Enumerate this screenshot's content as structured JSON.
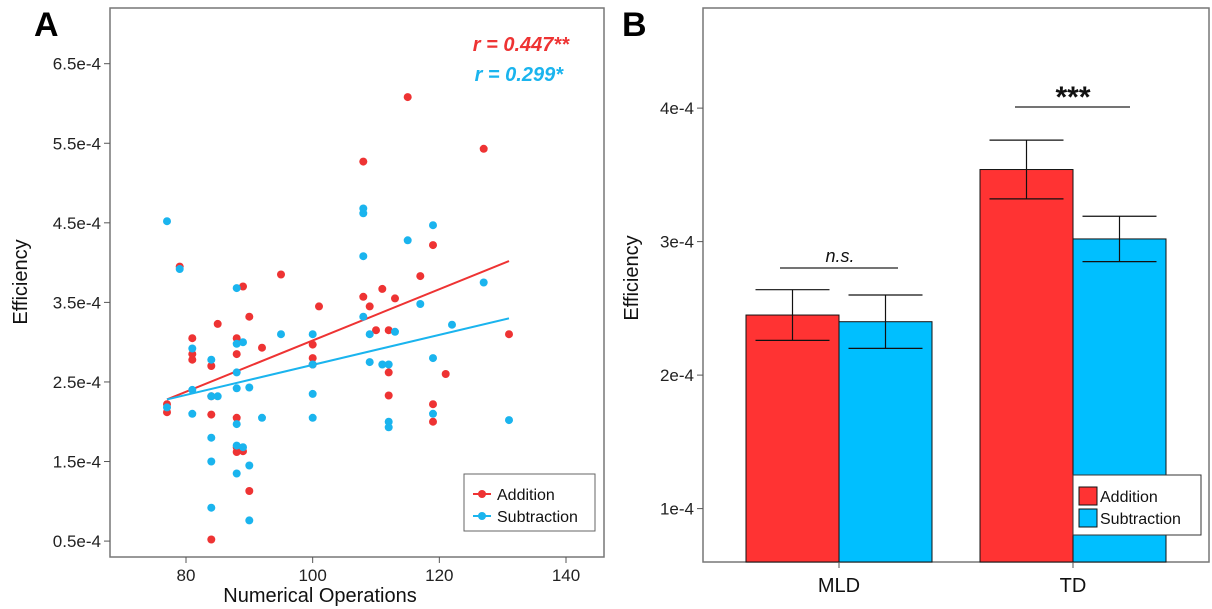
{
  "chart_data": [
    {
      "panel": "A",
      "type": "scatter",
      "xlabel": "Numerical Operations",
      "ylabel": "Efficiency",
      "xlim": [
        68,
        146
      ],
      "ylim": [
        3e-05,
        0.00072
      ],
      "x_ticks": [
        80,
        100,
        120,
        140
      ],
      "y_ticks": [
        5e-05,
        0.00015,
        0.00025,
        0.00035,
        0.00045,
        0.00055,
        0.00065
      ],
      "y_tick_labels": [
        "0.5e-4",
        "1.5e-4",
        "2.5e-4",
        "3.5e-4",
        "4.5e-4",
        "5.5e-4",
        "6.5e-4"
      ],
      "grid": false,
      "legend": {
        "position": "bottom-right",
        "entries": [
          "Addition",
          "Subtraction"
        ]
      },
      "annotations": [
        {
          "text": "r = 0.447**",
          "series": "Addition"
        },
        {
          "text": "r = 0.299*",
          "series": "Subtraction"
        }
      ],
      "series": [
        {
          "name": "Addition",
          "color": "#ee3333",
          "fit": {
            "x": [
              77,
              131
            ],
            "y": [
              0.000228,
              0.000402
            ]
          },
          "points": [
            [
              77,
              0.000212
            ],
            [
              77,
              0.000222
            ],
            [
              79,
              0.000395
            ],
            [
              81,
              0.000305
            ],
            [
              81,
              0.000285
            ],
            [
              81,
              0.000278
            ],
            [
              84,
              0.000232
            ],
            [
              84,
              0.000209
            ],
            [
              84,
              5.2e-05
            ],
            [
              84,
              0.00027
            ],
            [
              85,
              0.000323
            ],
            [
              88,
              0.000305
            ],
            [
              88,
              0.000285
            ],
            [
              88,
              0.000205
            ],
            [
              88,
              0.000168
            ],
            [
              88,
              0.000162
            ],
            [
              89,
              0.00037
            ],
            [
              89,
              0.000163
            ],
            [
              90,
              0.000332
            ],
            [
              90,
              0.000113
            ],
            [
              92,
              0.000293
            ],
            [
              95,
              0.000385
            ],
            [
              100,
              0.000297
            ],
            [
              100,
              0.00028
            ],
            [
              100,
              0.000272
            ],
            [
              101,
              0.000345
            ],
            [
              108,
              0.000527
            ],
            [
              108,
              0.000357
            ],
            [
              109,
              0.000345
            ],
            [
              110,
              0.000315
            ],
            [
              111,
              0.000367
            ],
            [
              112,
              0.000315
            ],
            [
              112,
              0.000262
            ],
            [
              112,
              0.000233
            ],
            [
              113,
              0.000355
            ],
            [
              115,
              0.000608
            ],
            [
              117,
              0.000383
            ],
            [
              119,
              0.000422
            ],
            [
              119,
              0.000222
            ],
            [
              119,
              0.0002
            ],
            [
              121,
              0.00026
            ],
            [
              127,
              0.000543
            ],
            [
              131,
              0.00031
            ]
          ]
        },
        {
          "name": "Subtraction",
          "color": "#1ab4ee",
          "fit": {
            "x": [
              77,
              131
            ],
            "y": [
              0.000228,
              0.00033
            ]
          },
          "points": [
            [
              77,
              0.000452
            ],
            [
              77,
              0.000218
            ],
            [
              79,
              0.000392
            ],
            [
              81,
              0.000292
            ],
            [
              81,
              0.00024
            ],
            [
              81,
              0.00021
            ],
            [
              84,
              0.000278
            ],
            [
              84,
              0.000232
            ],
            [
              84,
              0.00018
            ],
            [
              84,
              0.00015
            ],
            [
              84,
              9.2e-05
            ],
            [
              85,
              0.000232
            ],
            [
              88,
              0.000368
            ],
            [
              88,
              0.000298
            ],
            [
              88,
              0.000262
            ],
            [
              88,
              0.000242
            ],
            [
              88,
              0.000197
            ],
            [
              88,
              0.00017
            ],
            [
              88,
              0.000135
            ],
            [
              89,
              0.0003
            ],
            [
              89,
              0.000168
            ],
            [
              90,
              0.000243
            ],
            [
              90,
              0.000145
            ],
            [
              90,
              7.6e-05
            ],
            [
              92,
              0.000205
            ],
            [
              95,
              0.00031
            ],
            [
              100,
              0.00031
            ],
            [
              100,
              0.000272
            ],
            [
              100,
              0.000235
            ],
            [
              100,
              0.000205
            ],
            [
              108,
              0.000468
            ],
            [
              108,
              0.000462
            ],
            [
              108,
              0.000408
            ],
            [
              108,
              0.000332
            ],
            [
              109,
              0.00031
            ],
            [
              109,
              0.000275
            ],
            [
              111,
              0.000272
            ],
            [
              112,
              0.000272
            ],
            [
              112,
              0.0002
            ],
            [
              112,
              0.000193
            ],
            [
              113,
              0.000313
            ],
            [
              115,
              0.000428
            ],
            [
              117,
              0.000348
            ],
            [
              119,
              0.000447
            ],
            [
              119,
              0.00028
            ],
            [
              119,
              0.00021
            ],
            [
              122,
              0.000322
            ],
            [
              127,
              0.000375
            ],
            [
              131,
              0.000202
            ]
          ]
        }
      ]
    },
    {
      "panel": "B",
      "type": "bar",
      "ylabel": "Efficiency",
      "ylim": [
        6e-05,
        0.000475
      ],
      "y_ticks": [
        0.0001,
        0.0002,
        0.0003,
        0.0004
      ],
      "y_tick_labels": [
        "1e-4",
        "2e-4",
        "3e-4",
        "4e-4"
      ],
      "categories": [
        "MLD",
        "TD"
      ],
      "grid": false,
      "legend": {
        "position": "bottom-right",
        "entries": [
          "Addition",
          "Subtraction"
        ]
      },
      "series": [
        {
          "name": "Addition",
          "color": "#ff3333",
          "values": [
            0.000245,
            0.000354
          ],
          "error": [
            1.9e-05,
            2.2e-05
          ]
        },
        {
          "name": "Subtraction",
          "color": "#00bfff",
          "values": [
            0.00024,
            0.000302
          ],
          "error": [
            2e-05,
            1.7e-05
          ]
        }
      ],
      "significance": [
        {
          "category": "MLD",
          "label": "n.s."
        },
        {
          "category": "TD",
          "label": "***"
        }
      ]
    }
  ]
}
